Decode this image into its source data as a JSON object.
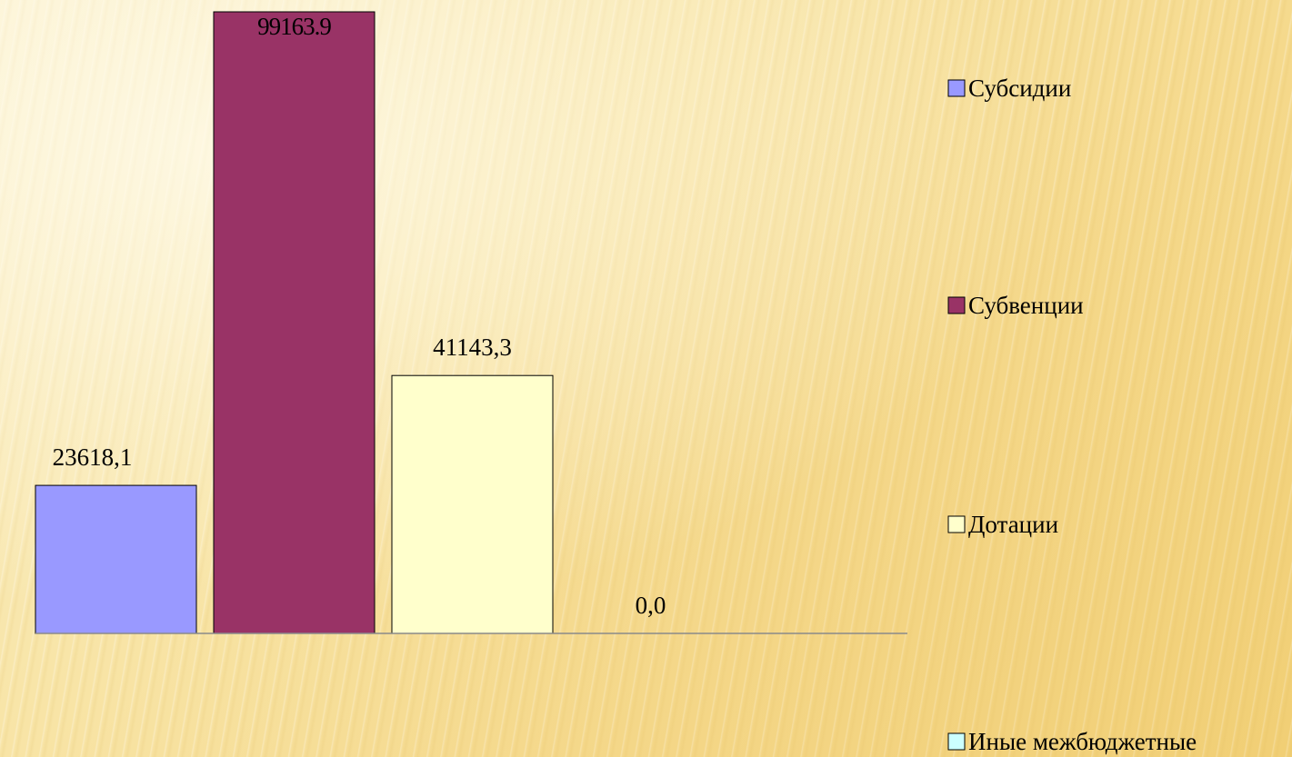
{
  "chart_data": {
    "type": "bar",
    "categories": [
      "Субсидии",
      "Субвенции",
      "Дотации",
      "Иные межбюджетные"
    ],
    "values": [
      23618.1,
      99163.9,
      41143.3,
      0.0
    ],
    "data_labels": [
      "23618,1",
      "99163.9",
      "41143,3",
      "0,0"
    ],
    "colors": [
      "#9999ff",
      "#993366",
      "#ffffcc",
      "#ccffff"
    ],
    "legend": {
      "placement": "right",
      "entries": [
        "Субсидии",
        "Субвенции",
        "Дотации",
        "Иные межбюджетные"
      ]
    },
    "grid": false,
    "ylim": [
      0,
      100000
    ]
  }
}
